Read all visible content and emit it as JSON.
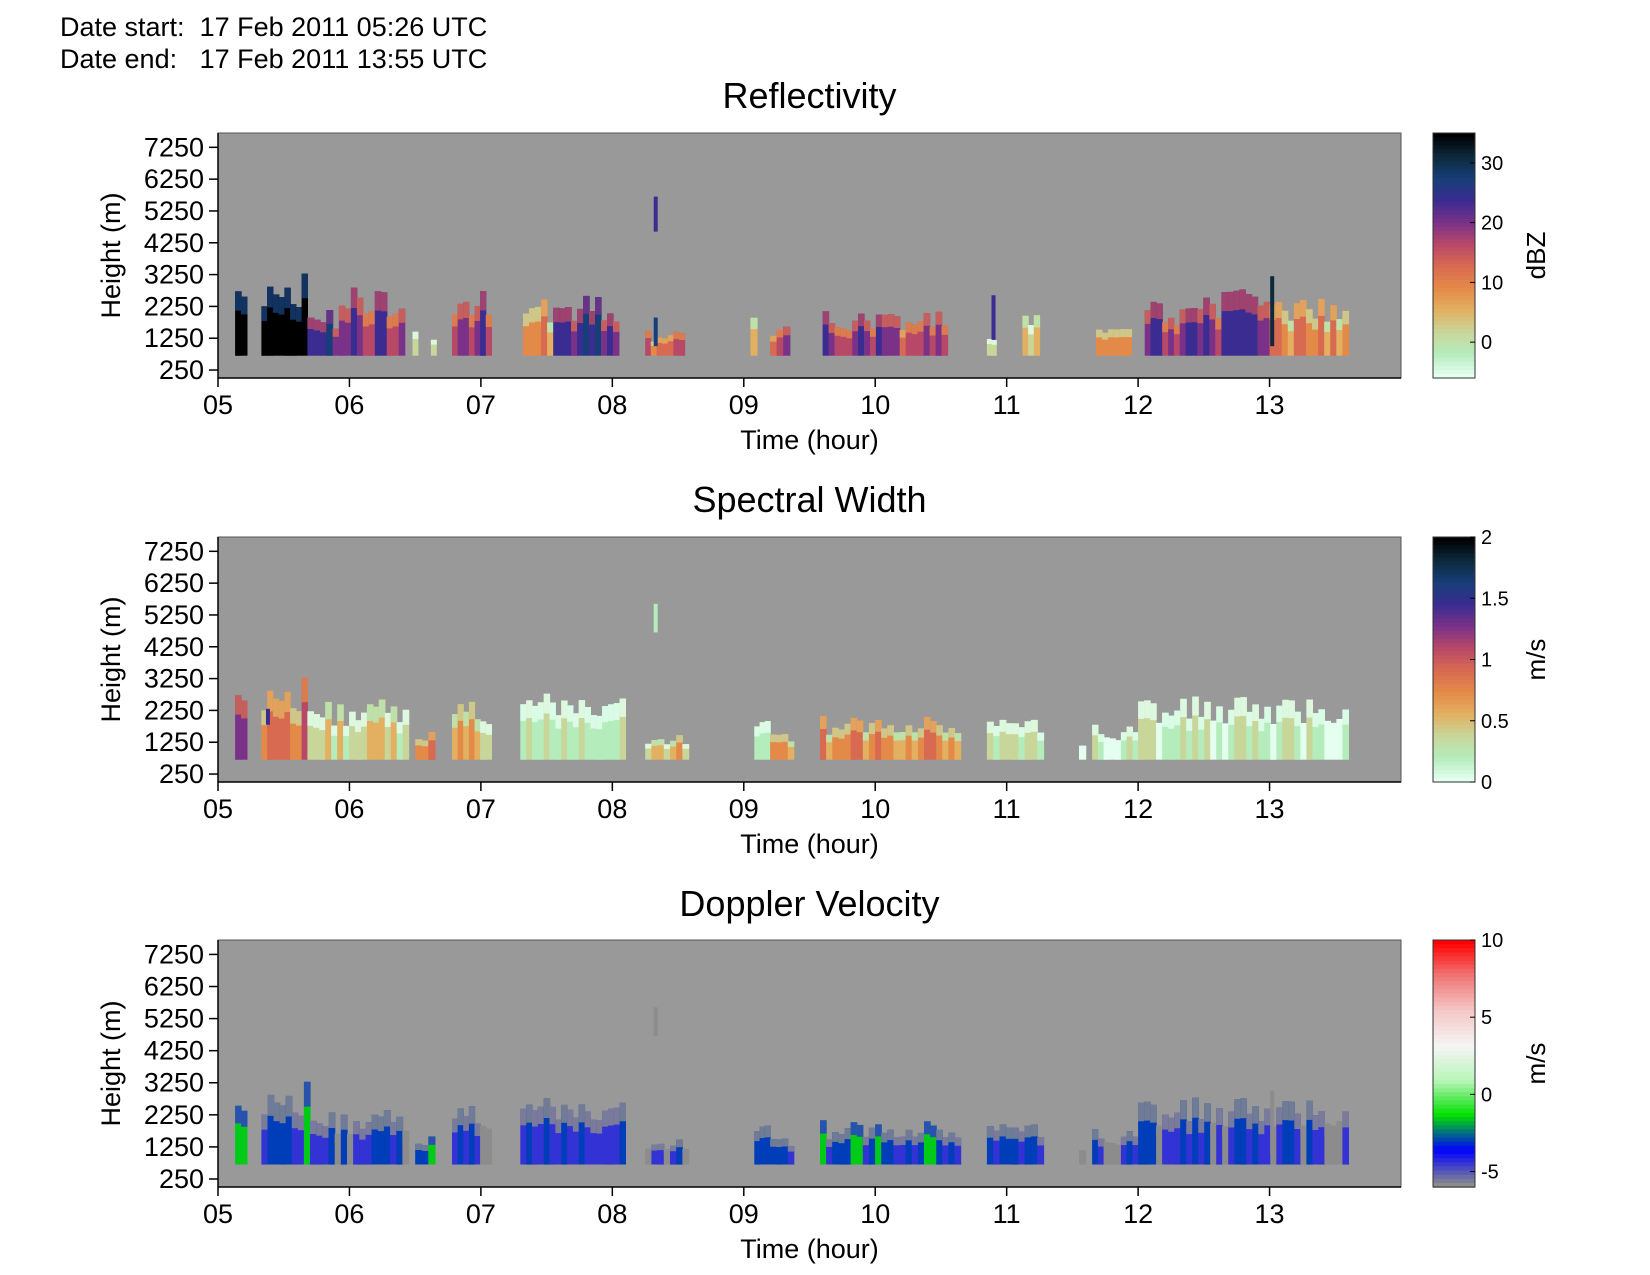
{
  "header": {
    "date_start_label": "Date start:",
    "date_start_value": "17 Feb 2011 05:26 UTC",
    "date_end_label": "Date end:",
    "date_end_value": "17 Feb 2011 13:55 UTC"
  },
  "colors": {
    "background": "#999999",
    "reflectivity_colormap": [
      "#e4fff0",
      "#b5ecbc",
      "#c9d69a",
      "#e2b060",
      "#e48a48",
      "#d86a52",
      "#b84868",
      "#7a3288",
      "#3a2c90",
      "#163e78",
      "#0c2a3c",
      "#000000"
    ],
    "width_colormap": [
      "#e4fff0",
      "#b5ecbc",
      "#c9d69a",
      "#e2b060",
      "#e48a48",
      "#d86a52",
      "#b84868",
      "#7a3288",
      "#3a2c90",
      "#163e78",
      "#0c2a3c",
      "#000000"
    ],
    "velocity_colormap": [
      "#8c8c8c",
      "#0000ff",
      "#00e000",
      "#b8f5b8",
      "#f5f5f5",
      "#f5c8c8",
      "#f07878",
      "#ff0000"
    ]
  },
  "chart_data": [
    {
      "type": "heatmap",
      "title": "Reflectivity",
      "xlabel": "Time (hour)",
      "ylabel": "Height (m)",
      "xlim": [
        5.0,
        14.0
      ],
      "ylim": [
        0,
        7700
      ],
      "x_ticks": [
        5,
        6,
        7,
        8,
        9,
        10,
        11,
        12,
        13
      ],
      "x_tick_labels": [
        "05",
        "06",
        "07",
        "08",
        "09",
        "10",
        "11",
        "12",
        "13"
      ],
      "y_ticks": [
        250,
        1250,
        2250,
        3250,
        4250,
        5250,
        6250,
        7250
      ],
      "y_tick_labels": [
        "250",
        "1250",
        "2250",
        "3250",
        "4250",
        "5250",
        "6250",
        "7250"
      ],
      "colorbar": {
        "label": "dBZ",
        "range": [
          -6,
          35
        ],
        "ticks": [
          0,
          10,
          20,
          30
        ],
        "tick_labels": [
          "0",
          "10",
          "20",
          "30"
        ]
      },
      "echo_segments": [
        {
          "x_start": 5.13,
          "x_end": 5.22,
          "top": 2800,
          "level": 10
        },
        {
          "x_start": 5.33,
          "x_end": 5.68,
          "top": 3400,
          "level": 12
        },
        {
          "x_start": 5.68,
          "x_end": 5.92,
          "top": 2200,
          "level": 8
        },
        {
          "x_start": 5.92,
          "x_end": 6.42,
          "top": 2900,
          "level": 7
        },
        {
          "x_start": 6.48,
          "x_end": 6.52,
          "top": 1700,
          "level": 2
        },
        {
          "x_start": 6.62,
          "x_end": 6.66,
          "top": 1300,
          "level": 2
        },
        {
          "x_start": 6.78,
          "x_end": 7.08,
          "top": 2800,
          "level": 7
        },
        {
          "x_start": 7.32,
          "x_end": 7.55,
          "top": 2600,
          "level": 4
        },
        {
          "x_start": 7.55,
          "x_end": 8.05,
          "top": 2600,
          "level": 8
        },
        {
          "x_start": 8.25,
          "x_end": 8.55,
          "top": 1500,
          "level": 5
        },
        {
          "x_start": 9.05,
          "x_end": 9.1,
          "top": 2000,
          "level": 2
        },
        {
          "x_start": 9.2,
          "x_end": 9.35,
          "top": 1700,
          "level": 6
        },
        {
          "x_start": 9.6,
          "x_end": 10.05,
          "top": 2100,
          "level": 7
        },
        {
          "x_start": 10.05,
          "x_end": 10.55,
          "top": 2100,
          "level": 6
        },
        {
          "x_start": 10.85,
          "x_end": 10.92,
          "top": 1400,
          "level": 2
        },
        {
          "x_start": 11.12,
          "x_end": 11.25,
          "top": 2000,
          "level": 2
        },
        {
          "x_start": 11.68,
          "x_end": 11.95,
          "top": 1800,
          "level": 4
        },
        {
          "x_start": 12.05,
          "x_end": 12.45,
          "top": 2400,
          "level": 7
        },
        {
          "x_start": 12.45,
          "x_end": 13.0,
          "top": 2800,
          "level": 7
        },
        {
          "x_start": 13.0,
          "x_end": 13.6,
          "top": 2500,
          "level": 4
        }
      ],
      "spikes": [
        {
          "x": 8.33,
          "bottom": 4600,
          "top": 5700,
          "level": 8
        },
        {
          "x": 8.33,
          "bottom": 1000,
          "top": 1900,
          "level": 9
        },
        {
          "x": 10.9,
          "bottom": 1200,
          "top": 2600,
          "level": 8
        },
        {
          "x": 13.02,
          "bottom": 1000,
          "top": 3200,
          "level": 10
        }
      ]
    },
    {
      "type": "heatmap",
      "title": "Spectral Width",
      "xlabel": "Time (hour)",
      "ylabel": "Height (m)",
      "xlim": [
        5.0,
        14.0
      ],
      "ylim": [
        0,
        7700
      ],
      "x_ticks": [
        5,
        6,
        7,
        8,
        9,
        10,
        11,
        12,
        13
      ],
      "x_tick_labels": [
        "05",
        "06",
        "07",
        "08",
        "09",
        "10",
        "11",
        "12",
        "13"
      ],
      "y_ticks": [
        250,
        1250,
        2250,
        3250,
        4250,
        5250,
        6250,
        7250
      ],
      "y_tick_labels": [
        "250",
        "1250",
        "2250",
        "3250",
        "4250",
        "5250",
        "6250",
        "7250"
      ],
      "colorbar": {
        "label": "m/s",
        "range": [
          0,
          2
        ],
        "ticks": [
          0,
          0.5,
          1,
          1.5,
          2
        ],
        "tick_labels": [
          "0",
          "0.5",
          "1",
          "1.5",
          "2"
        ]
      },
      "echo_segments": [
        {
          "x_start": 5.13,
          "x_end": 5.22,
          "top": 2800,
          "level": 6
        },
        {
          "x_start": 5.33,
          "x_end": 5.68,
          "top": 3400,
          "level": 5
        },
        {
          "x_start": 5.68,
          "x_end": 6.45,
          "top": 2600,
          "level": 2
        },
        {
          "x_start": 6.5,
          "x_end": 6.65,
          "top": 1600,
          "level": 4
        },
        {
          "x_start": 6.78,
          "x_end": 7.08,
          "top": 2600,
          "level": 3
        },
        {
          "x_start": 7.3,
          "x_end": 8.1,
          "top": 2800,
          "level": 1
        },
        {
          "x_start": 8.25,
          "x_end": 8.58,
          "top": 1500,
          "level": 3
        },
        {
          "x_start": 9.08,
          "x_end": 9.2,
          "top": 2200,
          "level": 1
        },
        {
          "x_start": 9.2,
          "x_end": 9.38,
          "top": 1700,
          "level": 4
        },
        {
          "x_start": 9.58,
          "x_end": 10.65,
          "top": 2100,
          "level": 4
        },
        {
          "x_start": 10.85,
          "x_end": 11.28,
          "top": 2000,
          "level": 1
        },
        {
          "x_start": 11.55,
          "x_end": 11.6,
          "top": 1400,
          "level": 1
        },
        {
          "x_start": 11.65,
          "x_end": 12.0,
          "top": 1800,
          "level": 1
        },
        {
          "x_start": 12.0,
          "x_end": 13.6,
          "top": 2700,
          "level": 1
        }
      ],
      "spikes": [
        {
          "x": 8.33,
          "bottom": 4700,
          "top": 5600,
          "level": 1
        },
        {
          "x": 5.38,
          "bottom": 1800,
          "top": 2300,
          "level": 8
        }
      ]
    },
    {
      "type": "heatmap",
      "title": "Doppler Velocity",
      "xlabel": "Time (hour)",
      "ylabel": "Height (m)",
      "xlim": [
        5.0,
        14.0
      ],
      "ylim": [
        0,
        7700
      ],
      "x_ticks": [
        5,
        6,
        7,
        8,
        9,
        10,
        11,
        12,
        13
      ],
      "x_tick_labels": [
        "05",
        "06",
        "07",
        "08",
        "09",
        "10",
        "11",
        "12",
        "13"
      ],
      "y_ticks": [
        250,
        1250,
        2250,
        3250,
        4250,
        5250,
        6250,
        7250
      ],
      "y_tick_labels": [
        "250",
        "1250",
        "2250",
        "3250",
        "4250",
        "5250",
        "6250",
        "7250"
      ],
      "colorbar": {
        "label": "m/s",
        "range": [
          -6,
          10
        ],
        "ticks": [
          -5,
          0,
          5,
          10
        ],
        "tick_labels": [
          "-5",
          "0",
          "5",
          "10"
        ]
      },
      "echo_segments": [
        {
          "x_start": 5.13,
          "x_end": 5.22,
          "top": 2600,
          "level": 2
        },
        {
          "x_start": 5.33,
          "x_end": 5.7,
          "top": 3400,
          "level": 2
        },
        {
          "x_start": 5.7,
          "x_end": 6.45,
          "top": 2400,
          "level": 1
        },
        {
          "x_start": 6.5,
          "x_end": 6.65,
          "top": 1600,
          "level": 2
        },
        {
          "x_start": 6.78,
          "x_end": 7.08,
          "top": 2600,
          "level": 1
        },
        {
          "x_start": 7.3,
          "x_end": 8.1,
          "top": 2800,
          "level": 1
        },
        {
          "x_start": 8.25,
          "x_end": 8.58,
          "top": 1500,
          "level": 1
        },
        {
          "x_start": 9.08,
          "x_end": 9.2,
          "top": 2200,
          "level": 2
        },
        {
          "x_start": 9.2,
          "x_end": 9.38,
          "top": 1700,
          "level": 2
        },
        {
          "x_start": 9.58,
          "x_end": 10.65,
          "top": 2100,
          "level": 2
        },
        {
          "x_start": 10.85,
          "x_end": 11.28,
          "top": 2000,
          "level": 1
        },
        {
          "x_start": 11.55,
          "x_end": 11.6,
          "top": 1400,
          "level": 1
        },
        {
          "x_start": 11.65,
          "x_end": 12.0,
          "top": 1800,
          "level": 1
        },
        {
          "x_start": 12.0,
          "x_end": 13.6,
          "top": 2800,
          "level": 1
        }
      ],
      "spikes": [
        {
          "x": 8.33,
          "bottom": 4700,
          "top": 5600,
          "level": 0
        },
        {
          "x": 13.02,
          "bottom": 1000,
          "top": 3000,
          "level": 0
        }
      ]
    }
  ]
}
